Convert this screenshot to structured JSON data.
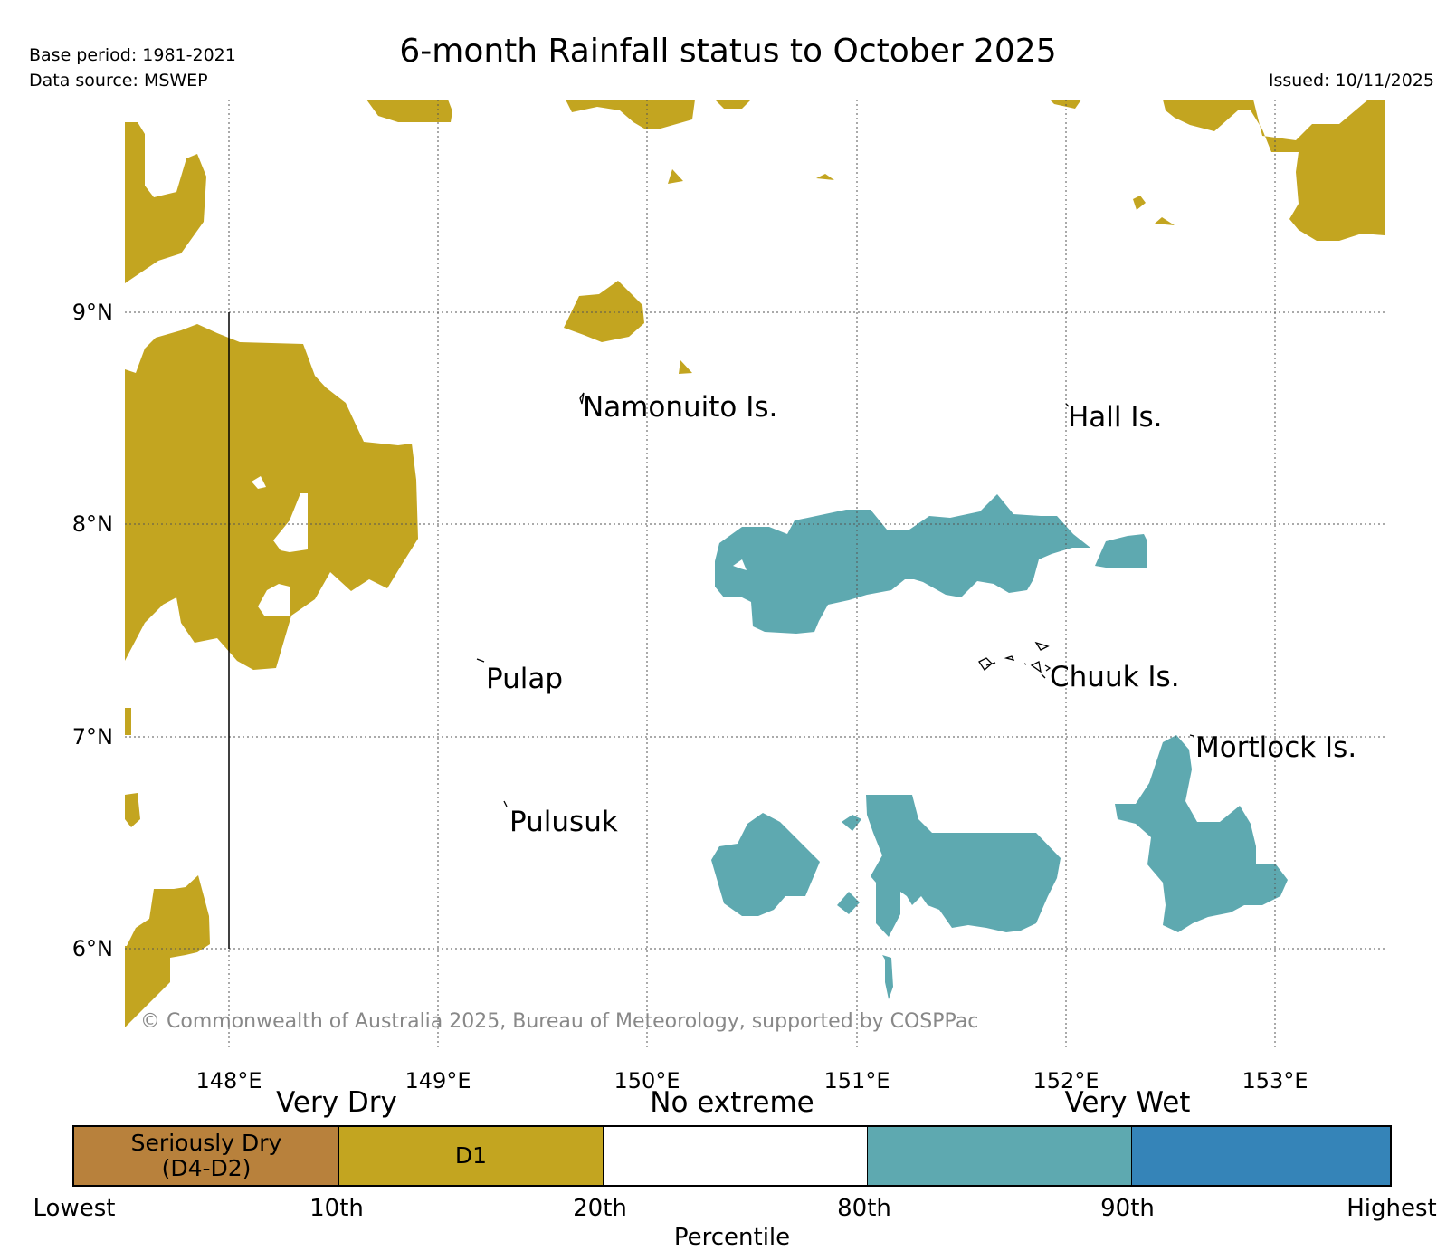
{
  "header": {
    "title": "6-month Rainfall status to October 2025",
    "base_period": "Base period: 1981-2021",
    "data_source": "Data source: MSWEP",
    "issued": "Issued: 10/11/2025"
  },
  "map": {
    "longitude_labels": [
      "148°E",
      "149°E",
      "150°E",
      "151°E",
      "152°E",
      "153°E"
    ],
    "latitude_labels": [
      "9°N",
      "8°N",
      "7°N",
      "6°N"
    ],
    "islands": [
      "Namonuito Is.",
      "Hall Is.",
      "Pulap",
      "Chuuk Is.",
      "Mortlock Is.",
      "Pulusuk"
    ],
    "copyright": "© Commonwealth of Australia 2025, Bureau of Meteorology, supported by COSPPac"
  },
  "legend": {
    "groups": [
      "Very Dry",
      "No extreme",
      "Very Wet"
    ],
    "segments": [
      {
        "label": "Seriously Dry\n(D4-D2)",
        "color": "#b8813c"
      },
      {
        "label": "D1",
        "color": "#c3a520"
      },
      {
        "label": "",
        "color": "#ffffff"
      },
      {
        "label": "",
        "color": "#5ea9b0"
      },
      {
        "label": "",
        "color": "#3584b8"
      }
    ],
    "ticks": [
      "Lowest",
      "10th",
      "20th",
      "80th",
      "90th",
      "Highest"
    ],
    "xlabel": "Percentile"
  }
}
